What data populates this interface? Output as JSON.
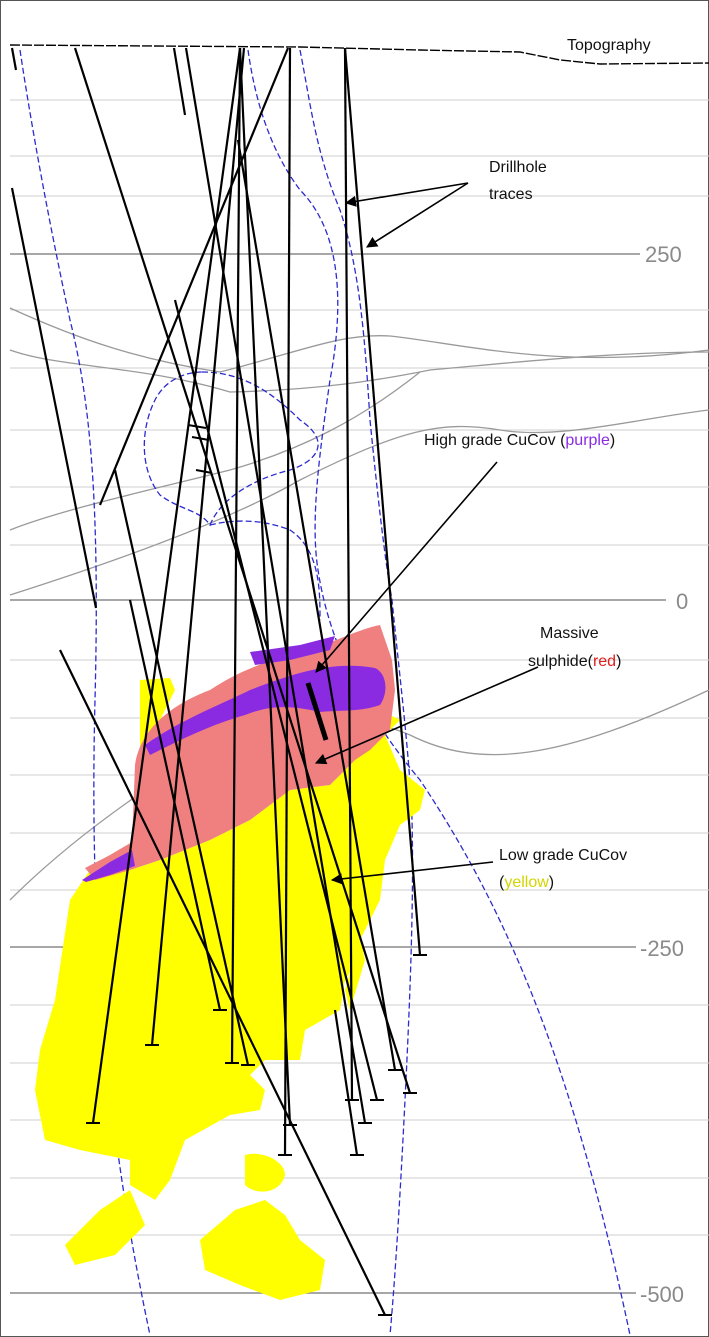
{
  "figure": {
    "depth_ticks": [
      "250",
      "0",
      "-250",
      "-500"
    ],
    "topography_label": "Topography",
    "drillhole_label": [
      "Drillhole",
      "traces"
    ],
    "high_grade": {
      "text": "High grade CuCov (",
      "color_word": "purple",
      "close": ")"
    },
    "massive": {
      "line1": "Massive",
      "text": "sulphide(",
      "color_word": "red",
      "close": ")"
    },
    "low_grade": {
      "line1": "Low grade CuCov",
      "open": "(",
      "color_word": "yellow",
      "close": ")"
    }
  },
  "colors": {
    "low_grade_fill": "#ffff00",
    "massive_fill": "#f08080",
    "high_grade_fill": "#8a2be2",
    "contact_line": "#2020c0",
    "contour_line": "#9a9a9a",
    "grid_line": "#cccccc",
    "drillhole": "#000000"
  }
}
